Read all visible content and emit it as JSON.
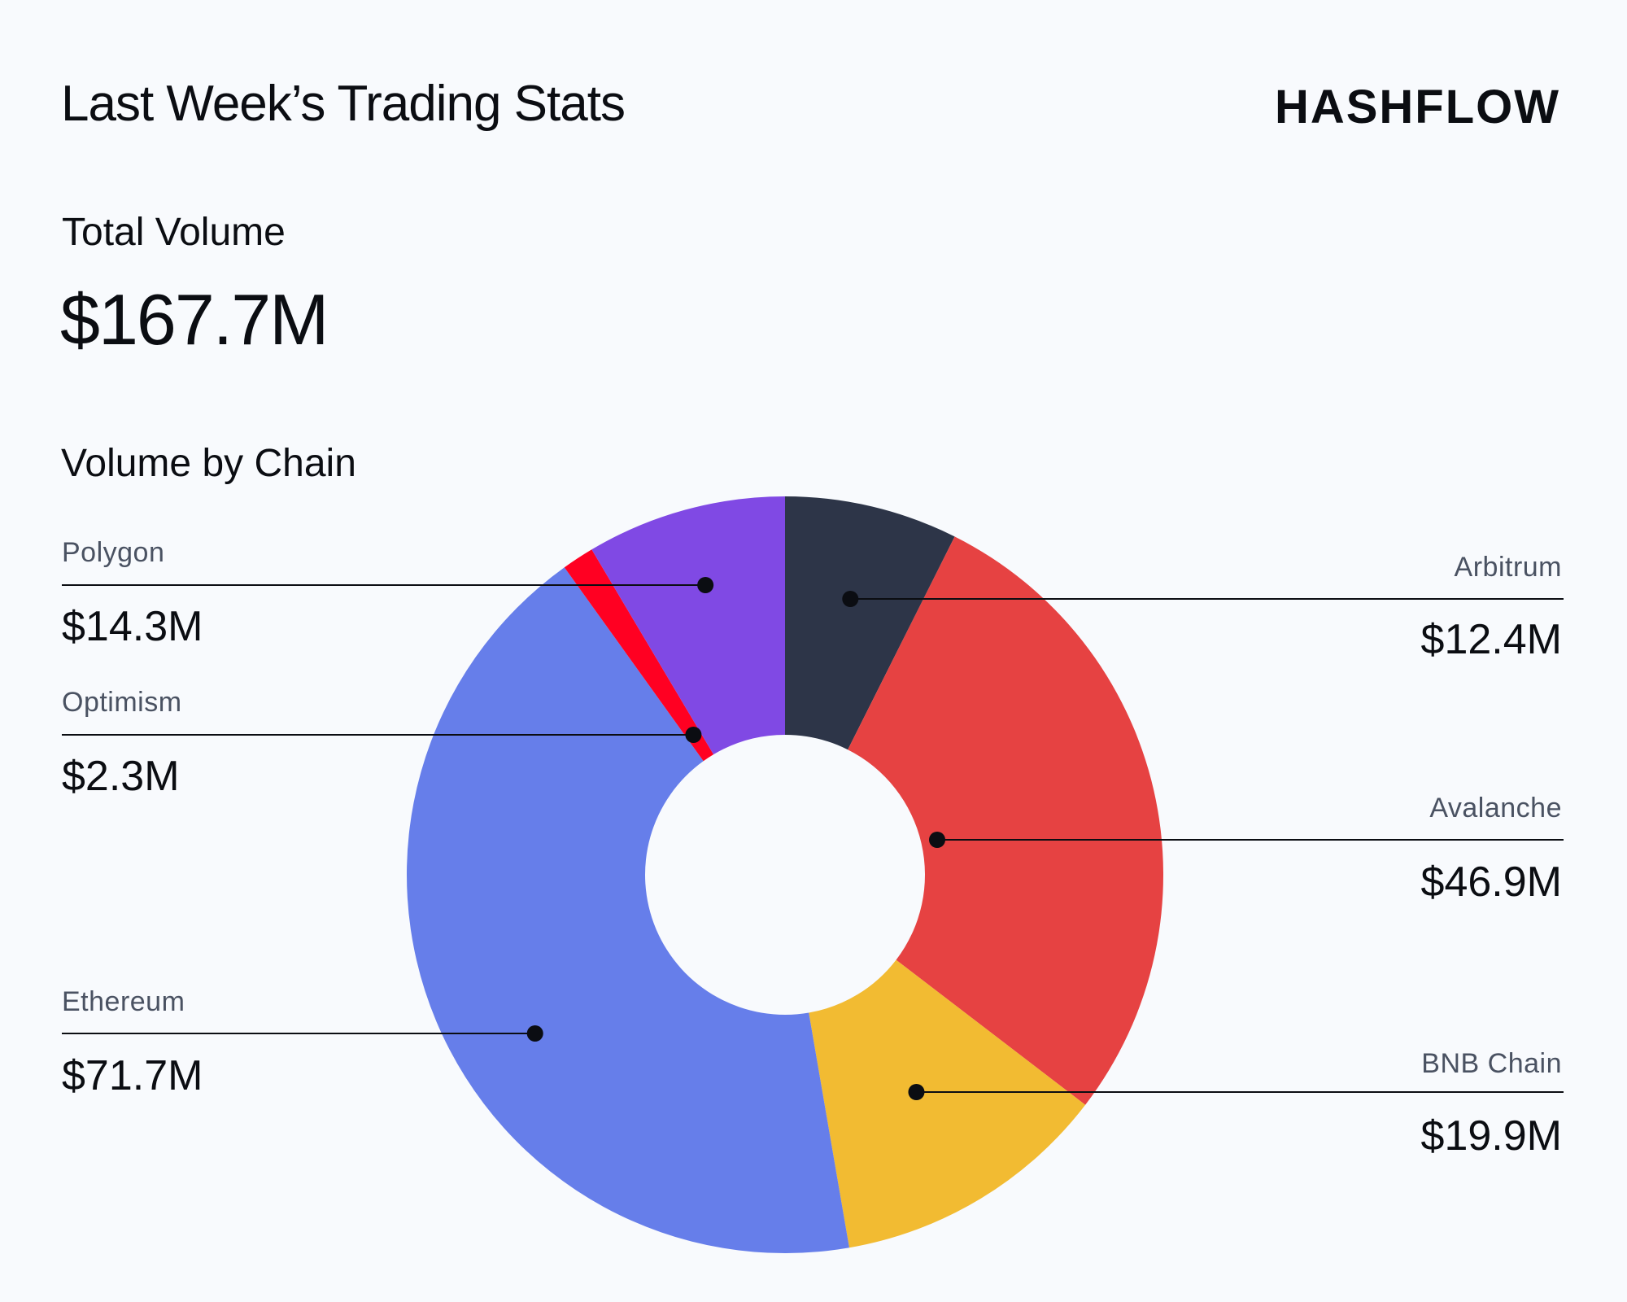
{
  "header": {
    "title": "Last Week’s Trading Stats",
    "logo_text": "HASHFLOW"
  },
  "summary": {
    "total_label": "Total Volume",
    "total_value": "$167.7M",
    "section_title": "Volume by Chain"
  },
  "chart_data": {
    "type": "pie",
    "style": "donut",
    "title": "Volume by Chain",
    "unit": "$M",
    "start_angle_deg": 0,
    "direction": "clockwise",
    "slices": [
      {
        "name": "Arbitrum",
        "value": 12.4,
        "label": "$12.4M",
        "color": "#2d3548",
        "side": "right"
      },
      {
        "name": "Avalanche",
        "value": 46.9,
        "label": "$46.9M",
        "color": "#e64242",
        "side": "right"
      },
      {
        "name": "BNB Chain",
        "value": 19.9,
        "label": "$19.9M",
        "color": "#f2bb32",
        "side": "right"
      },
      {
        "name": "Ethereum",
        "value": 71.7,
        "label": "$71.7M",
        "color": "#667eea",
        "side": "left"
      },
      {
        "name": "Optimism",
        "value": 2.3,
        "label": "$2.3M",
        "color": "#ff0022",
        "side": "left"
      },
      {
        "name": "Polygon",
        "value": 14.3,
        "label": "$14.3M",
        "color": "#8049e4",
        "side": "left"
      }
    ]
  },
  "colors": {
    "background": "#f8fafd",
    "text": "#0b0d12",
    "label_muted": "#4a5262",
    "leader_line": "#0b0d12"
  }
}
